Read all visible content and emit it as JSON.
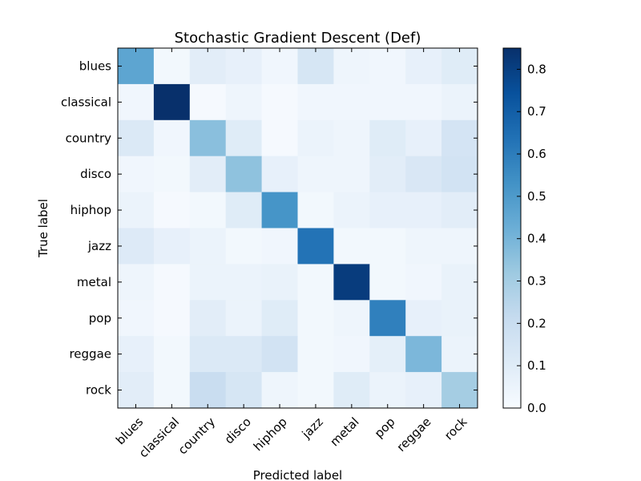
{
  "chart_data": {
    "type": "heatmap",
    "title": "Stochastic Gradient Descent (Def)",
    "xlabel": "Predicted label",
    "ylabel": "True label",
    "x_categories": [
      "blues",
      "classical",
      "country",
      "disco",
      "hiphop",
      "jazz",
      "metal",
      "pop",
      "reggae",
      "rock"
    ],
    "y_categories": [
      "blues",
      "classical",
      "country",
      "disco",
      "hiphop",
      "jazz",
      "metal",
      "pop",
      "reggae",
      "rock"
    ],
    "values": [
      [
        0.46,
        0.02,
        0.09,
        0.07,
        0.03,
        0.14,
        0.04,
        0.03,
        0.07,
        0.1
      ],
      [
        0.03,
        0.85,
        0.01,
        0.04,
        0.01,
        0.03,
        0.03,
        0.03,
        0.03,
        0.05
      ],
      [
        0.12,
        0.03,
        0.36,
        0.1,
        0.01,
        0.05,
        0.04,
        0.1,
        0.07,
        0.15
      ],
      [
        0.03,
        0.02,
        0.09,
        0.35,
        0.07,
        0.04,
        0.04,
        0.09,
        0.13,
        0.16
      ],
      [
        0.05,
        0.01,
        0.02,
        0.1,
        0.52,
        0.02,
        0.05,
        0.07,
        0.07,
        0.09
      ],
      [
        0.11,
        0.07,
        0.05,
        0.02,
        0.03,
        0.63,
        0.02,
        0.02,
        0.04,
        0.04
      ],
      [
        0.04,
        0.01,
        0.05,
        0.05,
        0.06,
        0.02,
        0.81,
        0.02,
        0.03,
        0.06
      ],
      [
        0.03,
        0.01,
        0.09,
        0.05,
        0.1,
        0.02,
        0.04,
        0.59,
        0.07,
        0.06
      ],
      [
        0.07,
        0.02,
        0.12,
        0.12,
        0.16,
        0.02,
        0.03,
        0.08,
        0.39,
        0.05
      ],
      [
        0.09,
        0.02,
        0.2,
        0.14,
        0.04,
        0.02,
        0.1,
        0.05,
        0.07,
        0.3
      ]
    ],
    "colorbar": {
      "min": 0.0,
      "max": 0.85,
      "ticks": [
        "0.0",
        "0.1",
        "0.2",
        "0.3",
        "0.4",
        "0.5",
        "0.6",
        "0.7",
        "0.8"
      ]
    },
    "colormap": "Blues",
    "colors": [
      "#f7fbff",
      "#deebf7",
      "#c6dbef",
      "#9ecae1",
      "#6baed6",
      "#4292c6",
      "#2171b5",
      "#08519c",
      "#08306b"
    ]
  }
}
